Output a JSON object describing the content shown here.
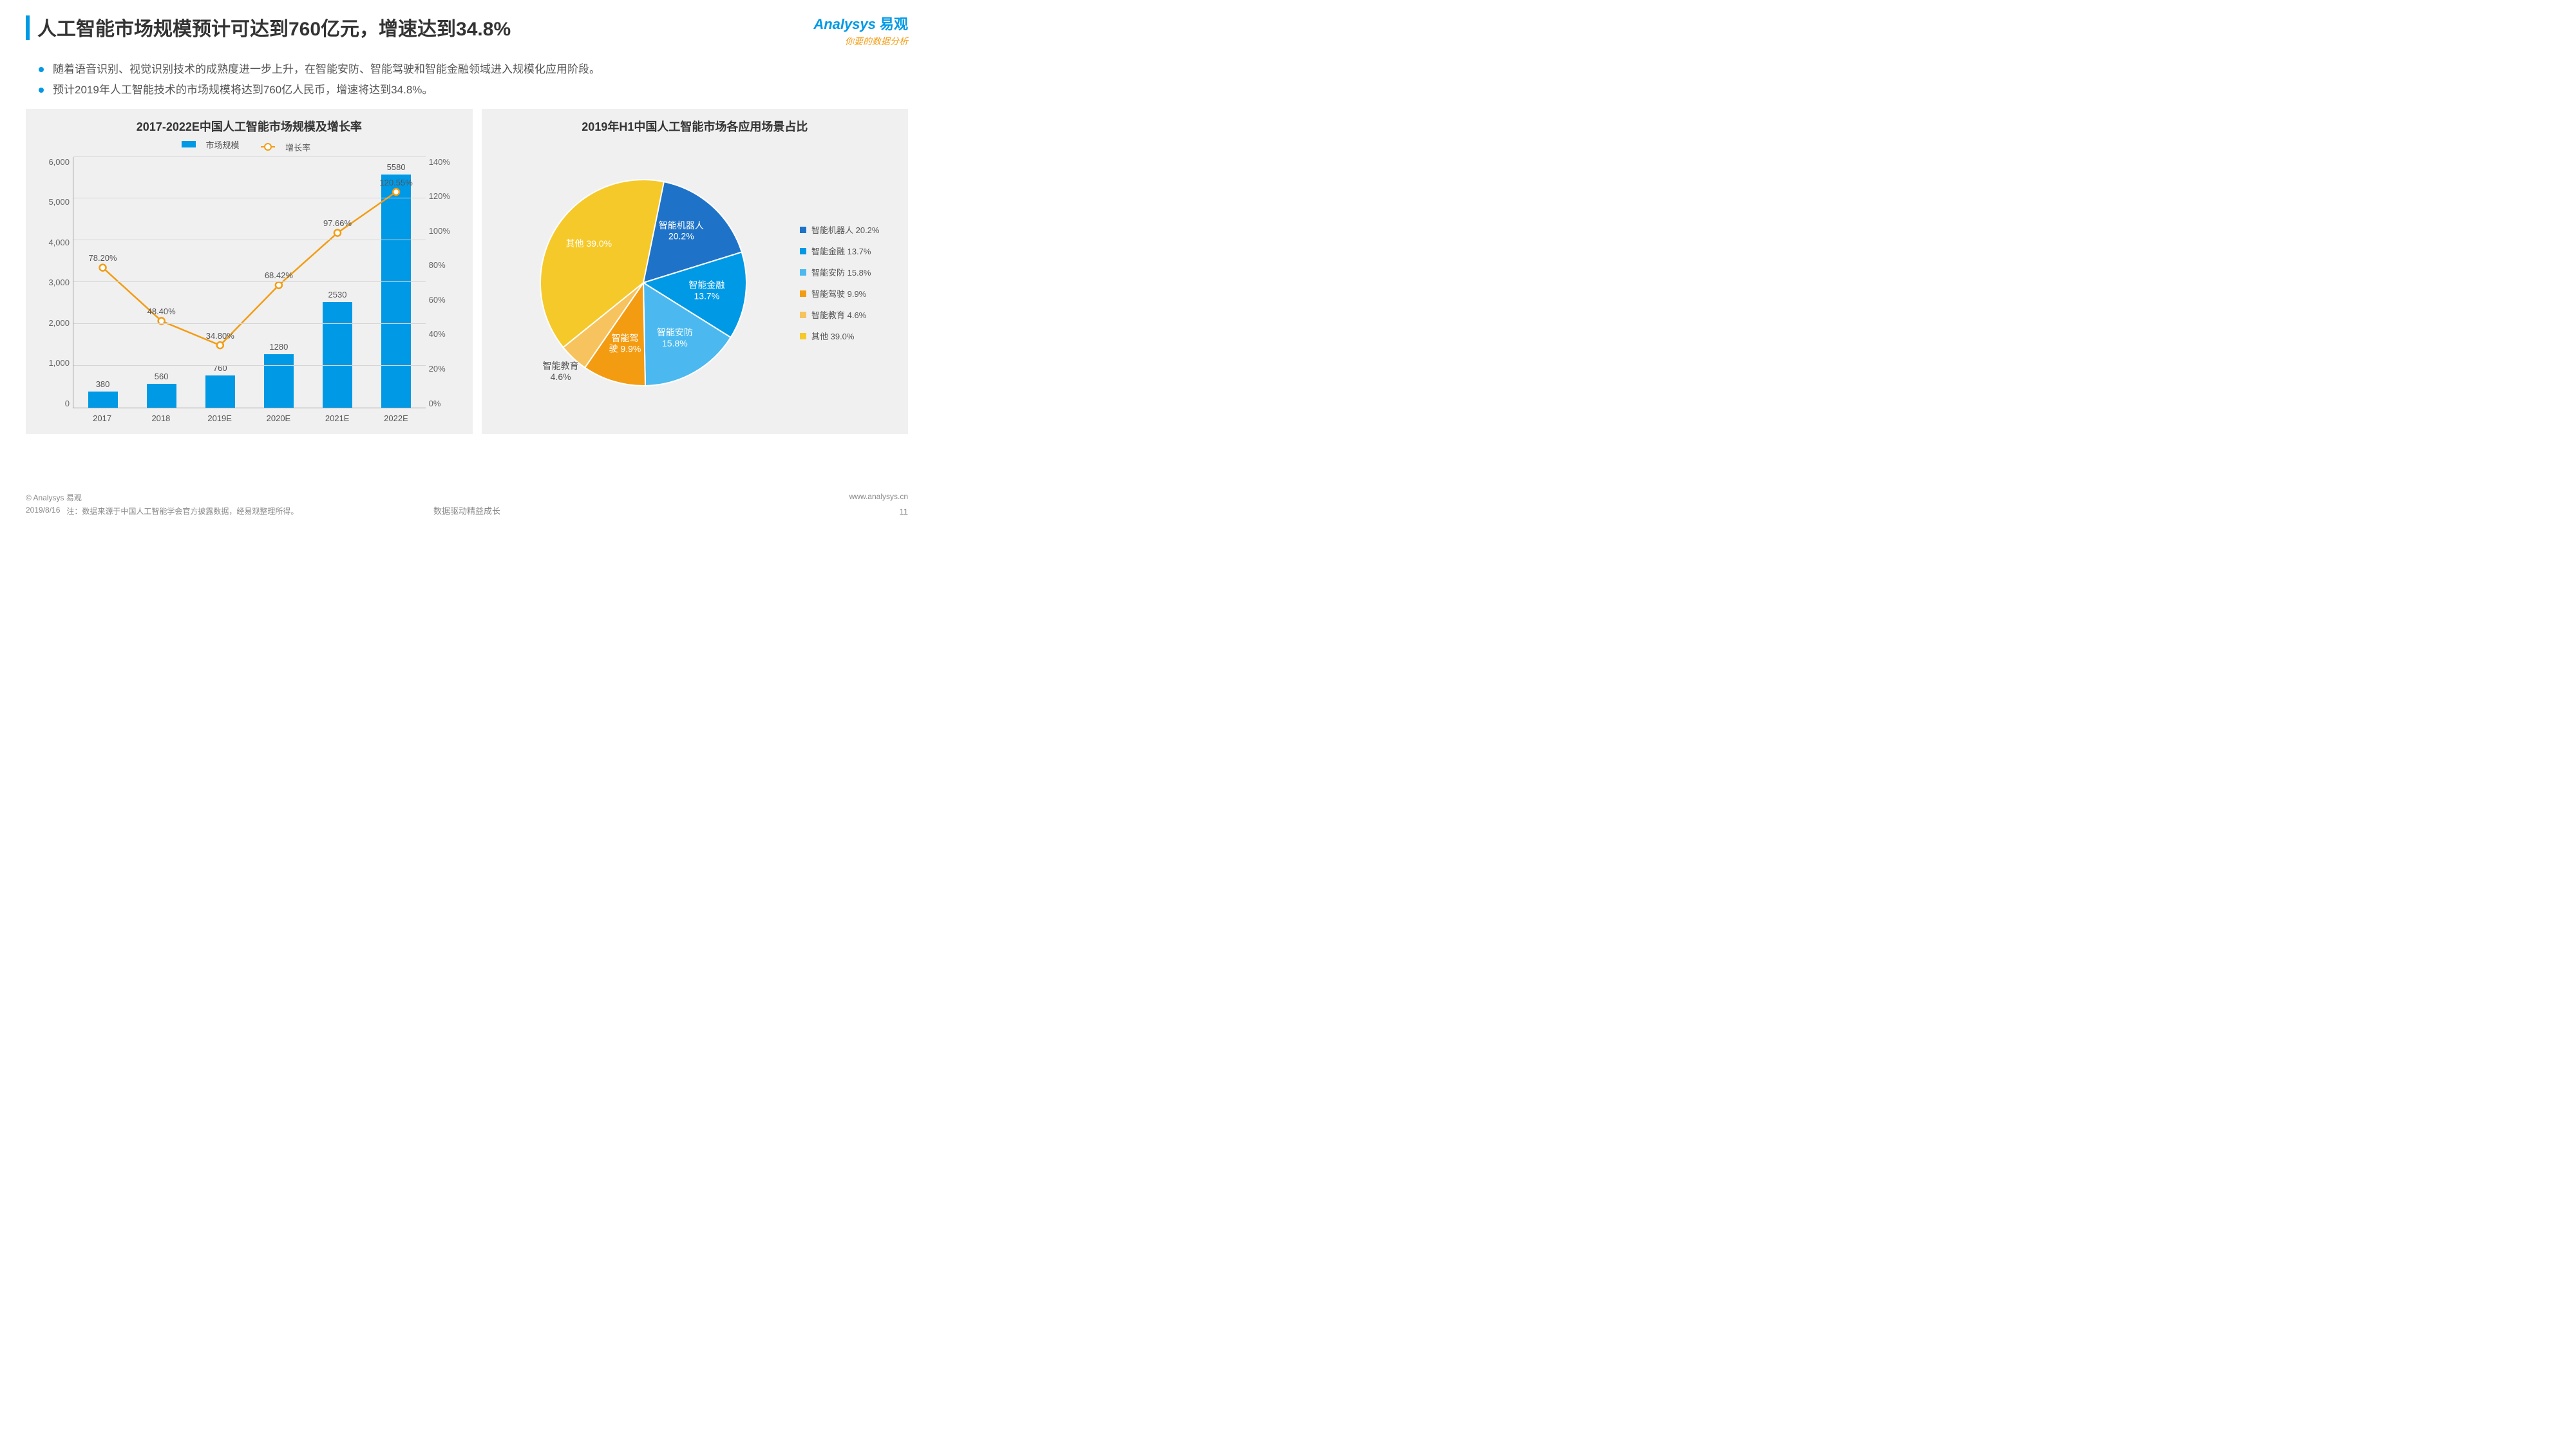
{
  "header": {
    "title": "人工智能市场规模预计可达到760亿元，增速达到34.8%",
    "logo_main": "Analysys",
    "logo_cn": "易观",
    "logo_sub": "你要的数据分析"
  },
  "bullets": [
    "随着语音识别、视觉识别技术的成熟度进一步上升，在智能安防、智能驾驶和智能金融领域进入规模化应用阶段。",
    "预计2019年人工智能技术的市场规模将达到760亿人民币，增速将达到34.8%。"
  ],
  "bar_chart": {
    "title": "2017-2022E中国人工智能市场规模及增长率",
    "legend_bar": "市场规模",
    "legend_line": "增长率",
    "categories": [
      "2017",
      "2018",
      "2019E",
      "2020E",
      "2021E",
      "2022E"
    ],
    "bar_values": [
      380,
      560,
      760,
      1280,
      2530,
      5580
    ],
    "line_values_pct": [
      78.2,
      48.4,
      34.8,
      68.42,
      97.66,
      120.55
    ],
    "line_labels": [
      "78.20%",
      "48.40%",
      "34.80%",
      "68.42%",
      "97.66%",
      "120.55%"
    ],
    "y_left_max": 6000,
    "y_left_step": 1000,
    "y_right_max": 140,
    "y_right_step": 20,
    "y_left_ticks": [
      "6,000",
      "5,000",
      "4,000",
      "3,000",
      "2,000",
      "1,000",
      "0"
    ],
    "y_right_ticks": [
      "140%",
      "120%",
      "100%",
      "80%",
      "60%",
      "40%",
      "20%",
      "0%"
    ],
    "bar_color": "#0099e5",
    "line_color": "#f39c12",
    "grid_color": "#d5d5d5",
    "bg_color": "#f0f0f0"
  },
  "pie_chart": {
    "title": "2019年H1中国人工智能市场各应用场景占比",
    "slices": [
      {
        "label": "智能机器人",
        "pct": 20.2,
        "color": "#1e73c8",
        "text": "智能机器人\n20.2%",
        "light": true
      },
      {
        "label": "智能金融",
        "pct": 13.7,
        "color": "#0099e5",
        "text": "智能金融\n13.7%",
        "light": true
      },
      {
        "label": "智能安防",
        "pct": 15.8,
        "color": "#4bb9ef",
        "text": "智能安防\n15.8%",
        "light": true
      },
      {
        "label": "智能驾驶",
        "pct": 9.9,
        "color": "#f39c12",
        "text": "智能驾\n驶 9.9%",
        "light": true
      },
      {
        "label": "智能教育",
        "pct": 4.6,
        "color": "#f7c35e",
        "text": "智能教育\n4.6%",
        "light": false,
        "outside": true
      },
      {
        "label": "其他",
        "pct": 39.0,
        "color": "#f5c92a",
        "text": "其他 39.0%",
        "light": true
      }
    ],
    "legend": [
      {
        "label": "智能机器人 20.2%",
        "color": "#1e73c8"
      },
      {
        "label": "智能金融 13.7%",
        "color": "#0099e5"
      },
      {
        "label": "智能安防 15.8%",
        "color": "#4bb9ef"
      },
      {
        "label": "智能驾驶 9.9%",
        "color": "#f39c12"
      },
      {
        "label": "智能教育 4.6%",
        "color": "#f7c35e"
      },
      {
        "label": "其他 39.0%",
        "color": "#f5c92a"
      }
    ]
  },
  "footer": {
    "copyright": "© Analysys 易观",
    "website": "www.analysys.cn",
    "date": "2019/8/16",
    "note": "注：数据来源于中国人工智能学会官方披露数据，经易观整理所得。",
    "center": "数据驱动精益成长",
    "page": "11"
  }
}
